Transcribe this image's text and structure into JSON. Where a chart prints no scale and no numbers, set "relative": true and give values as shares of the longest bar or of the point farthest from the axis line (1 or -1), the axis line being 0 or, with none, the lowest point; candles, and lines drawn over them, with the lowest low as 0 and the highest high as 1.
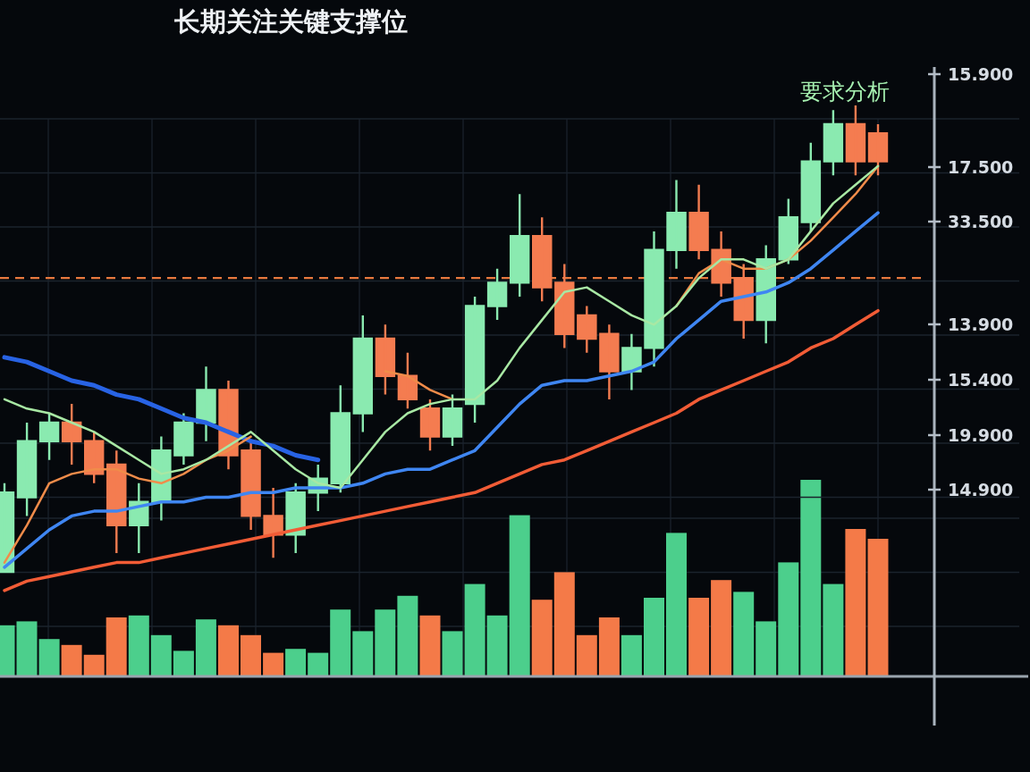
{
  "chart_data": [
    {
      "type": "candlestick",
      "title": "长期关注关键支撑位",
      "annotations": [
        "要求分析",
        "15.900",
        "17.500",
        "33.500",
        "13.900",
        "15.400",
        "19.900",
        "14.900"
      ],
      "categories": [
        null,
        null,
        null,
        null,
        null,
        null,
        null,
        null,
        null,
        null,
        null,
        null,
        null,
        null,
        null,
        null,
        null,
        null,
        null,
        null,
        null,
        null,
        null,
        null,
        null,
        null,
        null,
        null,
        null,
        null,
        null,
        null,
        null,
        null,
        null,
        null,
        null,
        null,
        null,
        null
      ],
      "relative": true,
      "ohlc": [
        [
          0.0,
          0.19,
          0.0,
          0.17
        ],
        [
          0.16,
          0.32,
          0.12,
          0.28
        ],
        [
          0.28,
          0.34,
          0.24,
          0.32
        ],
        [
          0.32,
          0.36,
          0.23,
          0.28
        ],
        [
          0.28,
          0.3,
          0.19,
          0.21
        ],
        [
          0.23,
          0.26,
          0.04,
          0.1
        ],
        [
          0.1,
          0.19,
          0.04,
          0.15
        ],
        [
          0.15,
          0.29,
          0.11,
          0.26
        ],
        [
          0.25,
          0.34,
          0.23,
          0.32
        ],
        [
          0.32,
          0.44,
          0.28,
          0.39
        ],
        [
          0.39,
          0.41,
          0.22,
          0.25
        ],
        [
          0.26,
          0.28,
          0.09,
          0.12
        ],
        [
          0.12,
          0.18,
          0.03,
          0.08
        ],
        [
          0.08,
          0.19,
          0.04,
          0.17
        ],
        [
          0.17,
          0.23,
          0.13,
          0.2
        ],
        [
          0.19,
          0.4,
          0.17,
          0.34
        ],
        [
          0.34,
          0.55,
          0.3,
          0.5
        ],
        [
          0.5,
          0.53,
          0.38,
          0.42
        ],
        [
          0.42,
          0.47,
          0.35,
          0.37
        ],
        [
          0.35,
          0.37,
          0.26,
          0.29
        ],
        [
          0.29,
          0.38,
          0.27,
          0.35
        ],
        [
          0.36,
          0.59,
          0.32,
          0.57
        ],
        [
          0.57,
          0.65,
          0.54,
          0.62
        ],
        [
          0.62,
          0.81,
          0.59,
          0.72
        ],
        [
          0.72,
          0.76,
          0.58,
          0.61
        ],
        [
          0.62,
          0.66,
          0.48,
          0.51
        ],
        [
          0.55,
          0.57,
          0.47,
          0.5
        ],
        [
          0.51,
          0.53,
          0.37,
          0.43
        ],
        [
          0.43,
          0.51,
          0.39,
          0.48
        ],
        [
          0.48,
          0.73,
          0.44,
          0.69
        ],
        [
          0.69,
          0.84,
          0.65,
          0.77
        ],
        [
          0.77,
          0.83,
          0.67,
          0.69
        ],
        [
          0.69,
          0.73,
          0.59,
          0.62
        ],
        [
          0.63,
          0.66,
          0.5,
          0.54
        ],
        [
          0.54,
          0.7,
          0.49,
          0.67
        ],
        [
          0.67,
          0.8,
          0.66,
          0.76
        ],
        [
          0.75,
          0.92,
          0.73,
          0.88
        ],
        [
          0.88,
          0.99,
          0.85,
          0.96
        ],
        [
          0.96,
          1.0,
          0.85,
          0.88
        ],
        [
          0.94,
          0.96,
          0.85,
          0.88
        ]
      ],
      "colors": [
        "#8aeab0",
        "#8aeab0",
        "#8aeab0",
        "#f47c50",
        "#f47c50",
        "#f47c50",
        "#8aeab0",
        "#8aeab0",
        "#8aeab0",
        "#8aeab0",
        "#f47c50",
        "#f47c50",
        "#f47c50",
        "#8aeab0",
        "#8aeab0",
        "#8aeab0",
        "#8aeab0",
        "#f47c50",
        "#f47c50",
        "#f47c50",
        "#8aeab0",
        "#8aeab0",
        "#8aeab0",
        "#8aeab0",
        "#f47c50",
        "#f47c50",
        "#f47c50",
        "#f47c50",
        "#8aeab0",
        "#8aeab0",
        "#8aeab0",
        "#f47c50",
        "#f47c50",
        "#f47c50",
        "#8aeab0",
        "#8aeab0",
        "#8aeab0",
        "#8aeab0",
        "#f47c50",
        "#f47c50"
      ],
      "series": [
        {
          "type": "line",
          "color": "#2863e4",
          "values": [
            0.46,
            0.45,
            0.43,
            0.41,
            0.4,
            0.38,
            0.37,
            0.35,
            0.33,
            0.32,
            0.3,
            0.28,
            0.27,
            0.25,
            0.24,
            null,
            null,
            null,
            null,
            null,
            null,
            null,
            null,
            null,
            null,
            null,
            null,
            null,
            null,
            null,
            null,
            null,
            null,
            null,
            null,
            null,
            null,
            null,
            null,
            null
          ]
        },
        {
          "type": "line",
          "color": "#3f86f2",
          "values": [
            0.01,
            0.05,
            0.09,
            0.12,
            0.13,
            0.13,
            0.14,
            0.15,
            0.15,
            0.16,
            0.16,
            0.17,
            0.17,
            0.18,
            0.18,
            0.18,
            0.19,
            0.21,
            0.22,
            0.22,
            0.24,
            0.26,
            0.31,
            0.36,
            0.4,
            0.41,
            0.41,
            0.42,
            0.43,
            0.45,
            0.5,
            0.54,
            0.58,
            0.59,
            0.6,
            0.62,
            0.65,
            0.69,
            0.73,
            0.77
          ]
        },
        {
          "type": "line",
          "color": "#f25c36",
          "values": [
            -0.04,
            -0.02,
            -0.01,
            0.0,
            0.01,
            0.02,
            0.02,
            0.03,
            0.04,
            0.05,
            0.06,
            0.07,
            0.08,
            0.09,
            0.1,
            0.11,
            0.12,
            0.13,
            0.14,
            0.15,
            0.16,
            0.17,
            0.19,
            0.21,
            0.23,
            0.24,
            0.26,
            0.28,
            0.3,
            0.32,
            0.34,
            0.37,
            0.39,
            0.41,
            0.43,
            0.45,
            0.48,
            0.5,
            0.53,
            0.56
          ]
        },
        {
          "type": "line",
          "color": "#f08c4a",
          "values": [
            0.02,
            0.1,
            0.19,
            0.21,
            0.22,
            0.22,
            0.2,
            0.19,
            0.21,
            0.24,
            0.26,
            0.29,
            null,
            null,
            null,
            null,
            null,
            0.43,
            0.42,
            0.39,
            0.37,
            null,
            null,
            null,
            null,
            null,
            null,
            null,
            null,
            null,
            0.57,
            0.64,
            0.67,
            0.65,
            0.65,
            0.67,
            0.71,
            0.76,
            0.81,
            0.87
          ]
        },
        {
          "type": "line",
          "color": "#a8e8a4",
          "values": [
            0.37,
            0.35,
            0.34,
            0.32,
            0.3,
            0.27,
            0.24,
            0.21,
            0.22,
            0.24,
            0.27,
            0.3,
            0.26,
            0.22,
            0.19,
            0.18,
            0.24,
            0.3,
            0.34,
            0.36,
            0.37,
            0.37,
            0.41,
            0.48,
            0.54,
            0.6,
            0.61,
            0.58,
            0.55,
            0.53,
            0.57,
            0.63,
            0.67,
            0.67,
            0.65,
            0.67,
            0.73,
            0.79,
            0.83,
            0.87
          ]
        }
      ],
      "ref_lines": [
        {
          "axis": "y",
          "value": 0.63,
          "color": "#e8793e",
          "line_style": "dashed"
        }
      ],
      "grid": true
    },
    {
      "type": "bar",
      "categories": [
        null,
        null,
        null,
        null,
        null,
        null,
        null,
        null,
        null,
        null,
        null,
        null,
        null,
        null,
        null,
        null,
        null,
        null,
        null,
        null,
        null,
        null,
        null,
        null,
        null,
        null,
        null,
        null,
        null,
        null,
        null,
        null,
        null,
        null,
        null,
        null,
        null,
        null,
        null,
        null
      ],
      "relative": true,
      "values": [
        0.26,
        0.28,
        0.19,
        0.16,
        0.11,
        0.3,
        0.31,
        0.21,
        0.13,
        0.29,
        0.26,
        0.21,
        0.12,
        0.14,
        0.12,
        0.34,
        0.23,
        0.34,
        0.41,
        0.31,
        0.23,
        0.47,
        0.31,
        0.82,
        0.39,
        0.53,
        0.21,
        0.3,
        0.21,
        0.4,
        0.73,
        0.4,
        0.49,
        0.43,
        0.28,
        0.58,
        1,
        0.47,
        0.75,
        0.7
      ],
      "colors": [
        "#4ccf8c",
        "#4ccf8c",
        "#4ccf8c",
        "#f47a48",
        "#f47a48",
        "#f47a48",
        "#4ccf8c",
        "#4ccf8c",
        "#4ccf8c",
        "#4ccf8c",
        "#f47a48",
        "#f47a48",
        "#f47a48",
        "#4ccf8c",
        "#4ccf8c",
        "#4ccf8c",
        "#4ccf8c",
        "#4ccf8c",
        "#4ccf8c",
        "#f47a48",
        "#4ccf8c",
        "#4ccf8c",
        "#4ccf8c",
        "#4ccf8c",
        "#f47a48",
        "#f47a48",
        "#f47a48",
        "#f47a48",
        "#4ccf8c",
        "#4ccf8c",
        "#4ccf8c",
        "#f47a48",
        "#f47a48",
        "#4ccf8c",
        "#4ccf8c",
        "#4ccf8c",
        "#4ccf8c",
        "#4ccf8c",
        "#f47a48",
        "#f47a48"
      ],
      "grid": true
    }
  ]
}
